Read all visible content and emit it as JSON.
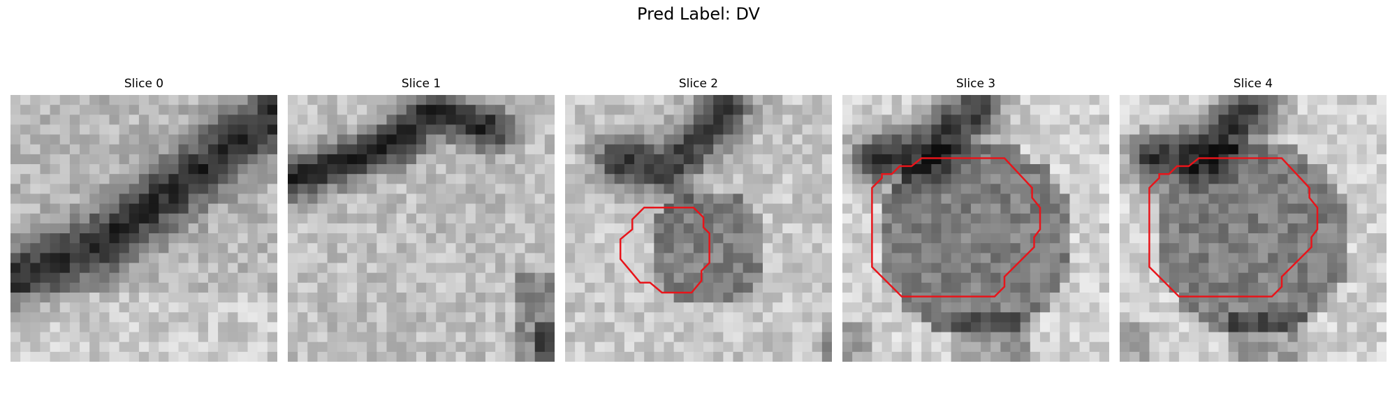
{
  "figure": {
    "title": "Pred Label: DV"
  },
  "panels": [
    {
      "title": "Slice 0",
      "contour": false
    },
    {
      "title": "Slice 1",
      "contour": false
    },
    {
      "title": "Slice 2",
      "contour": true
    },
    {
      "title": "Slice 3",
      "contour": true
    },
    {
      "title": "Slice 4",
      "contour": true
    }
  ],
  "style": {
    "contour_color": "#e8141a"
  }
}
